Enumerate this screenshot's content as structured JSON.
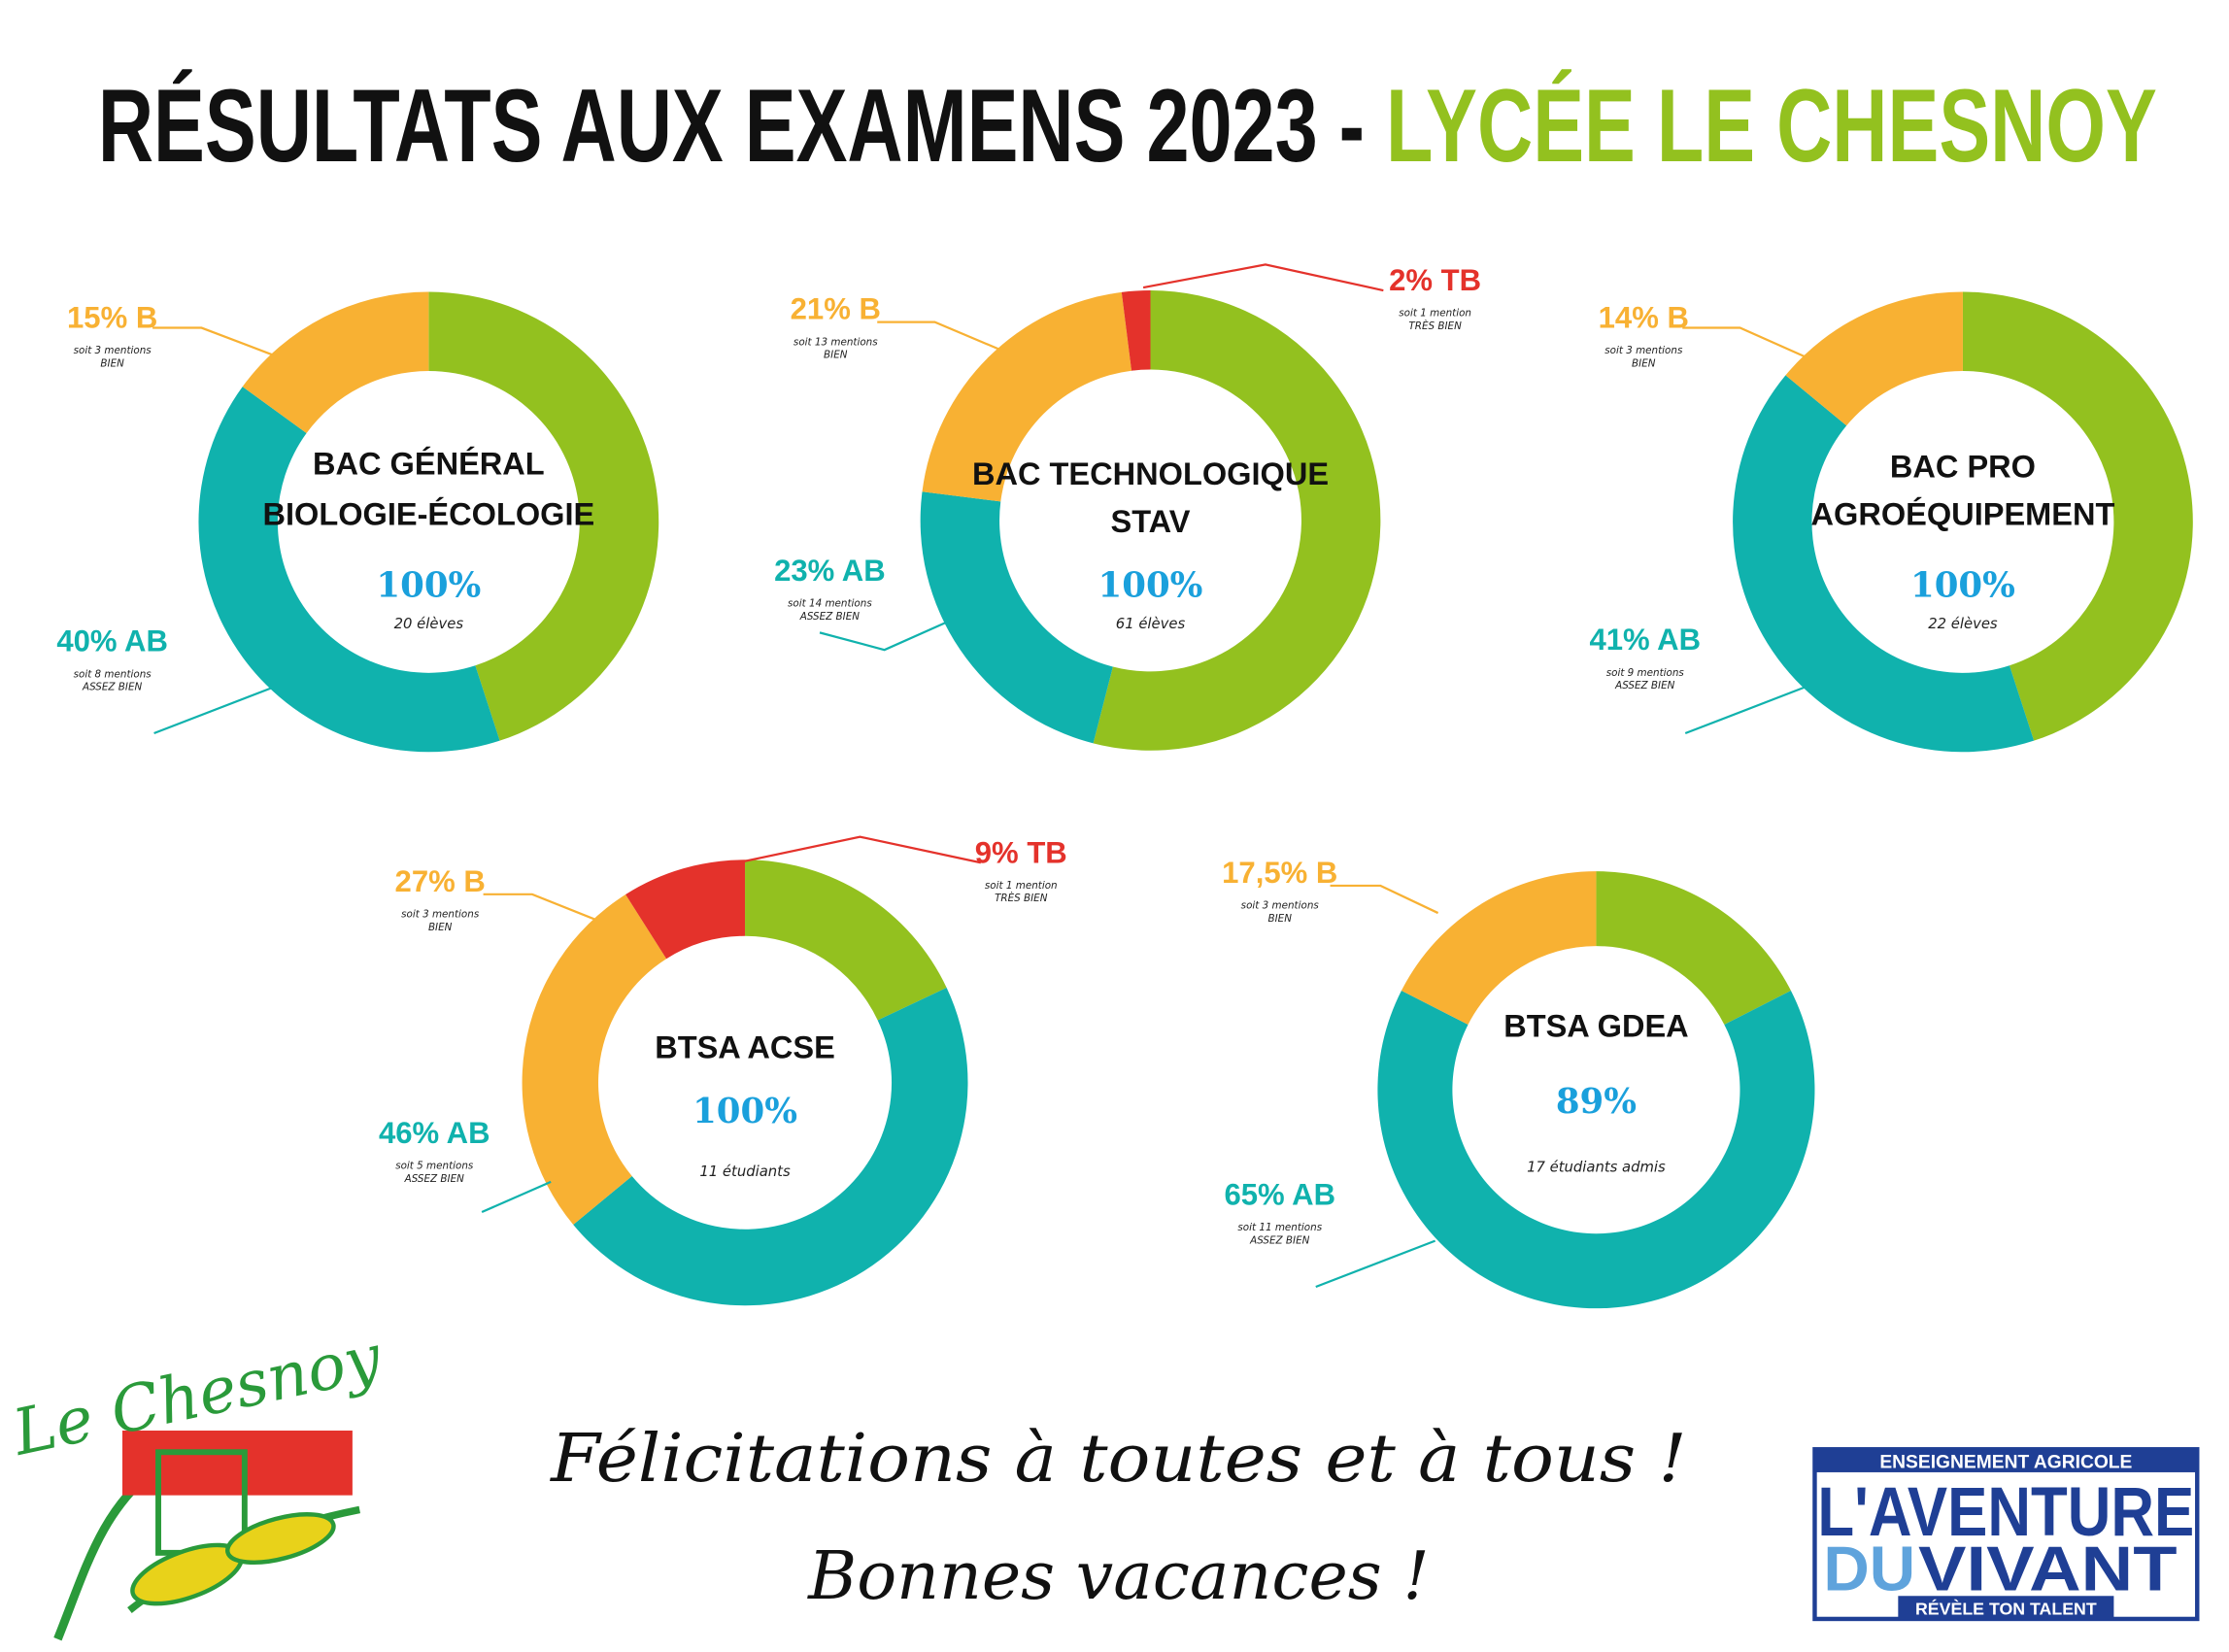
{
  "header": {
    "title_black": "RÉSULTATS AUX EXAMENS 2023 - ",
    "title_green": "LYCÉE LE CHESNOY"
  },
  "chart_data": [
    {
      "type": "donut",
      "title_lines": [
        "BAC GÉNÉRAL",
        "BIOLOGIE-ÉCOLOGIE"
      ],
      "rate": 100,
      "rate_label": "100%",
      "count_label": "20 élèves",
      "segments": [
        {
          "value": 45,
          "color": "#93c11f"
        },
        {
          "value": 40,
          "label": "40% AB",
          "note": [
            "soit 8 mentions",
            "ASSEZ BIEN"
          ],
          "color": "#10b2ad"
        },
        {
          "value": 15,
          "label": "15% B",
          "note": [
            "soit 3 mentions",
            "BIEN"
          ],
          "color": "#f8b133"
        }
      ]
    },
    {
      "type": "donut",
      "title_lines": [
        "BAC TECHNOLOGIQUE",
        "STAV"
      ],
      "rate": 100,
      "rate_label": "100%",
      "count_label": "61 élèves",
      "segments": [
        {
          "value": 54,
          "color": "#93c11f"
        },
        {
          "value": 23,
          "label": "23% AB",
          "note": [
            "soit 14 mentions",
            "ASSEZ BIEN"
          ],
          "color": "#10b2ad"
        },
        {
          "value": 21,
          "label": "21% B",
          "note": [
            "soit 13 mentions",
            "BIEN"
          ],
          "color": "#f8b133"
        },
        {
          "value": 2,
          "label": "2% TB",
          "note": [
            "soit 1 mention",
            "TRÈS BIEN"
          ],
          "color": "#e4322b"
        }
      ]
    },
    {
      "type": "donut",
      "title_lines": [
        "BAC PRO",
        "AGROÉQUIPEMENT"
      ],
      "rate": 100,
      "rate_label": "100%",
      "count_label": "22 élèves",
      "segments": [
        {
          "value": 45,
          "color": "#93c11f"
        },
        {
          "value": 41,
          "label": "41% AB",
          "note": [
            "soit 9 mentions",
            "ASSEZ BIEN"
          ],
          "color": "#10b2ad"
        },
        {
          "value": 14,
          "label": "14% B",
          "note": [
            "soit 3 mentions",
            "BIEN"
          ],
          "color": "#f8b133"
        }
      ]
    },
    {
      "type": "donut",
      "title_lines": [
        "BTSA ACSE"
      ],
      "rate": 100,
      "rate_label": "100%",
      "count_label": "11 étudiants",
      "segments": [
        {
          "value": 18,
          "color": "#93c11f"
        },
        {
          "value": 46,
          "label": "46% AB",
          "note": [
            "soit 5 mentions",
            "ASSEZ BIEN"
          ],
          "color": "#10b2ad"
        },
        {
          "value": 27,
          "label": "27% B",
          "note": [
            "soit 3 mentions",
            "BIEN"
          ],
          "color": "#f8b133"
        },
        {
          "value": 9,
          "label": "9% TB",
          "note": [
            "soit 1 mention",
            "TRÈS BIEN"
          ],
          "color": "#e4322b"
        }
      ]
    },
    {
      "type": "donut",
      "title_lines": [
        "BTSA GDEA"
      ],
      "rate": 89,
      "rate_label": "89%",
      "count_label": "17 étudiants admis",
      "segments": [
        {
          "value": 17.5,
          "color": "#93c11f"
        },
        {
          "value": 65,
          "label": "65% AB",
          "note": [
            "soit 11 mentions",
            "ASSEZ BIEN"
          ],
          "color": "#10b2ad"
        },
        {
          "value": 17.5,
          "label": "17,5% B",
          "note": [
            "soit 3 mentions",
            "BIEN"
          ],
          "color": "#f8b133"
        }
      ]
    }
  ],
  "footer": {
    "line1": "Félicitations à toutes et à tous !",
    "line2": "Bonnes vacances !"
  },
  "logo_left": {
    "text": "Le Chesnoy"
  },
  "logo_right": {
    "top": "ENSEIGNEMENT AGRICOLE",
    "line1": "L'AVENTURE",
    "du": "DU",
    "vivant": "VIVANT",
    "bottom": "RÉVÈLE TON TALENT"
  }
}
